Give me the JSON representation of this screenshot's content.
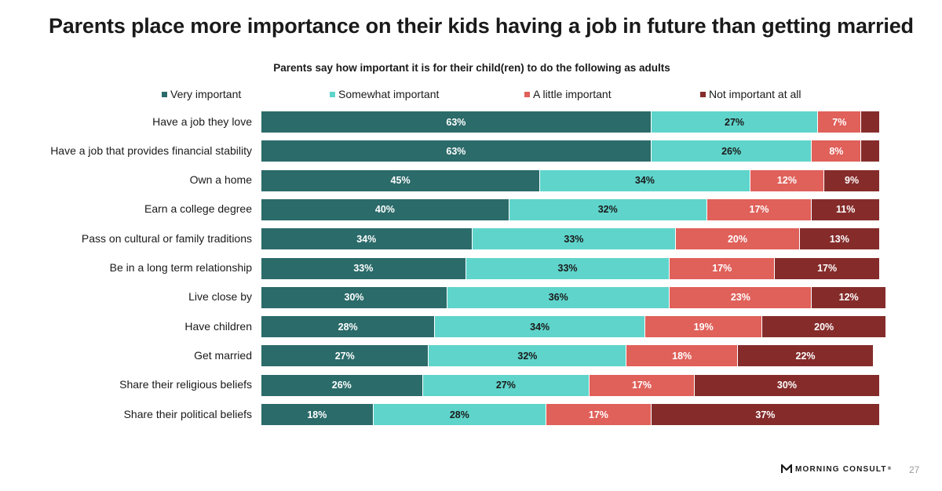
{
  "slide": {
    "title": "Parents place more importance on their kids having a job in future than getting married",
    "logo_text": "MORNING CONSULT",
    "logo_mark": "®",
    "page_number": "27"
  },
  "chart_data": {
    "type": "bar",
    "orientation": "horizontal",
    "stacked": true,
    "percent_stacked": true,
    "title": "Parents say how important it is for their child(ren) to do the following as adults",
    "legend_position": "top",
    "grid": false,
    "xlim": [
      0,
      100
    ],
    "categories": [
      "Have a job they love",
      "Have a job that provides financial stability",
      "Own a home",
      "Earn a college degree",
      "Pass on cultural or family traditions",
      "Be in a long term relationship",
      "Live close by",
      "Have children",
      "Get married",
      "Share their religious beliefs",
      "Share their political beliefs"
    ],
    "series": [
      {
        "name": "Very important",
        "color": "#2b6b6a",
        "values": [
          63,
          63,
          45,
          40,
          34,
          33,
          30,
          28,
          27,
          26,
          18
        ]
      },
      {
        "name": "Somewhat important",
        "color": "#5fd4cb",
        "values": [
          27,
          26,
          34,
          32,
          33,
          33,
          36,
          34,
          32,
          27,
          28
        ]
      },
      {
        "name": "A little important",
        "color": "#e0605a",
        "values": [
          7,
          8,
          12,
          17,
          20,
          17,
          23,
          19,
          18,
          17,
          17
        ]
      },
      {
        "name": "Not important at all",
        "color": "#852c2b",
        "values": [
          3,
          3,
          9,
          11,
          13,
          17,
          12,
          20,
          22,
          30,
          37
        ]
      }
    ],
    "data_labels": [
      [
        "63%",
        "63%",
        "45%",
        "40%",
        "34%",
        "33%",
        "30%",
        "28%",
        "27%",
        "26%",
        "18%"
      ],
      [
        "27%",
        "26%",
        "34%",
        "32%",
        "33%",
        "33%",
        "36%",
        "34%",
        "32%",
        "27%",
        "28%"
      ],
      [
        "7%",
        "8%",
        "12%",
        "17%",
        "20%",
        "17%",
        "23%",
        "19%",
        "18%",
        "17%",
        "17%"
      ],
      [
        "",
        "",
        "9%",
        "11%",
        "13%",
        "17%",
        "12%",
        "20%",
        "22%",
        "30%",
        "37%"
      ]
    ]
  }
}
